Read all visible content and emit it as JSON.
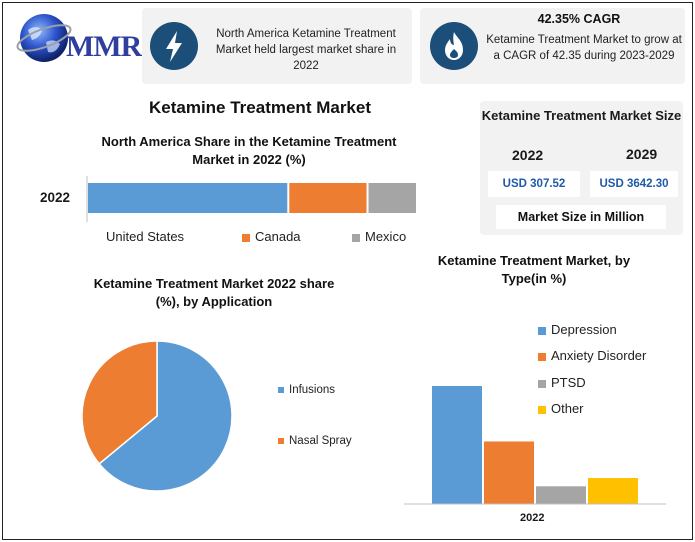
{
  "brand": {
    "logo_text": "MMR",
    "colors": {
      "primary": "#2e3f9e",
      "icon_bg": "#1b4f7a",
      "value_text": "#1e5aa8"
    }
  },
  "info_cards": [
    {
      "icon": "lightning-icon",
      "text": "North America Ketamine Treatment Market held largest market share in 2022"
    },
    {
      "icon": "flame-icon",
      "title": "42.35% CAGR",
      "text": "Ketamine Treatment Market to grow at a CAGR of 42.35 during 2023-2029"
    }
  ],
  "main_title": "Ketamine Treatment Market",
  "market_size": {
    "title": "Ketamine Treatment Market Size",
    "year_start": "2022",
    "year_end": "2029",
    "value_start": "USD 307.52",
    "value_end": "USD 3642.30",
    "unit": "Market Size in Million"
  },
  "chart_data": [
    {
      "type": "bar",
      "orientation": "horizontal-stacked",
      "title": "North America Share in the Ketamine Treatment Market in 2022 (%)",
      "categories": [
        "2022"
      ],
      "series": [
        {
          "name": "United States",
          "values": [
            61
          ],
          "color": "#5b9bd5"
        },
        {
          "name": "Canada",
          "values": [
            24
          ],
          "color": "#ed7d31"
        },
        {
          "name": "Mexico",
          "values": [
            15
          ],
          "color": "#a5a5a5"
        }
      ],
      "legend": "bottom"
    },
    {
      "type": "pie",
      "title": "Ketamine Treatment Market 2022 share (%), by Application",
      "labels": [
        "Infusions",
        "Nasal Spray"
      ],
      "values": [
        64,
        36
      ],
      "colors": [
        "#5b9bd5",
        "#ed7d31"
      ],
      "legend": "right"
    },
    {
      "type": "bar",
      "title": "Ketamine Treatment Market, by Type(in %)",
      "categories": [
        "2022"
      ],
      "series": [
        {
          "name": "Depression",
          "values": [
            50
          ],
          "color": "#5b9bd5"
        },
        {
          "name": "Anxiety Disorder",
          "values": [
            26.5
          ],
          "color": "#ed7d31"
        },
        {
          "name": "PTSD",
          "values": [
            7.5
          ],
          "color": "#a5a5a5"
        },
        {
          "name": "Other",
          "values": [
            11
          ],
          "color": "#ffc000"
        }
      ],
      "legend": "top-right"
    }
  ]
}
